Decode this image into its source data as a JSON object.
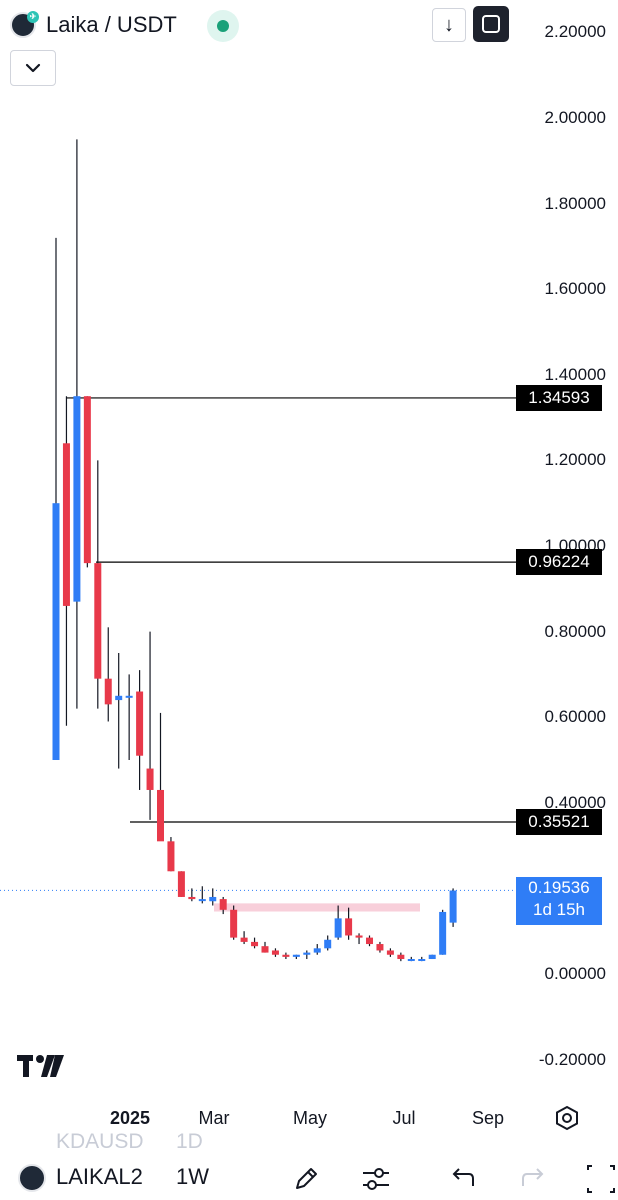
{
  "header": {
    "symbol": "Laika / USDT",
    "status_color": "#1aa179",
    "download_icon": "arrow-down-icon",
    "fullscreen_icon": "fullscreen-icon",
    "collapse_icon": "chevron-down-icon"
  },
  "colors": {
    "up": "#2f7df6",
    "down": "#e8394a",
    "zone": "#f7c7d3",
    "line": "#000000"
  },
  "chart_data": {
    "type": "candlestick",
    "interval": "1W",
    "y_ticks": [
      "2.20000",
      "2.00000",
      "1.80000",
      "1.60000",
      "1.40000",
      "1.20000",
      "1.00000",
      "0.80000",
      "0.60000",
      "0.40000",
      "0.00000",
      "-0.20000"
    ],
    "y_tick_values": [
      2.2,
      2.0,
      1.8,
      1.6,
      1.4,
      1.2,
      1.0,
      0.8,
      0.6,
      0.4,
      0.0,
      -0.2
    ],
    "ylim": [
      -0.2,
      2.2
    ],
    "x_ticks": [
      "2025",
      "Mar",
      "May",
      "Jul",
      "Sep"
    ],
    "horizontal_levels": [
      {
        "value": 1.34593,
        "label": "1.34593"
      },
      {
        "value": 0.96224,
        "label": "0.96224"
      },
      {
        "value": 0.35521,
        "label": "0.35521"
      }
    ],
    "last_price": {
      "value": 0.19536,
      "label": "0.19536",
      "countdown": "1d 15h"
    },
    "resistance_zone": {
      "from": 0.146,
      "to": 0.165
    },
    "candles": [
      {
        "o": 0.5,
        "h": 1.72,
        "l": 0.5,
        "c": 1.1
      },
      {
        "o": 1.24,
        "h": 1.35,
        "l": 0.58,
        "c": 0.86
      },
      {
        "o": 0.87,
        "h": 1.95,
        "l": 0.62,
        "c": 1.35
      },
      {
        "o": 1.35,
        "h": 1.35,
        "l": 0.95,
        "c": 0.96
      },
      {
        "o": 0.96,
        "h": 1.2,
        "l": 0.62,
        "c": 0.69
      },
      {
        "o": 0.69,
        "h": 0.81,
        "l": 0.59,
        "c": 0.63
      },
      {
        "o": 0.64,
        "h": 0.75,
        "l": 0.48,
        "c": 0.65
      },
      {
        "o": 0.65,
        "h": 0.7,
        "l": 0.5,
        "c": 0.65
      },
      {
        "o": 0.66,
        "h": 0.71,
        "l": 0.43,
        "c": 0.51
      },
      {
        "o": 0.48,
        "h": 0.8,
        "l": 0.36,
        "c": 0.43
      },
      {
        "o": 0.43,
        "h": 0.61,
        "l": 0.32,
        "c": 0.31
      },
      {
        "o": 0.31,
        "h": 0.32,
        "l": 0.24,
        "c": 0.24
      },
      {
        "o": 0.24,
        "h": 0.24,
        "l": 0.18,
        "c": 0.18
      },
      {
        "o": 0.18,
        "h": 0.2,
        "l": 0.17,
        "c": 0.175
      },
      {
        "o": 0.175,
        "h": 0.205,
        "l": 0.165,
        "c": 0.175
      },
      {
        "o": 0.17,
        "h": 0.2,
        "l": 0.16,
        "c": 0.18
      },
      {
        "o": 0.175,
        "h": 0.18,
        "l": 0.14,
        "c": 0.15
      },
      {
        "o": 0.15,
        "h": 0.16,
        "l": 0.08,
        "c": 0.085
      },
      {
        "o": 0.085,
        "h": 0.1,
        "l": 0.07,
        "c": 0.075
      },
      {
        "o": 0.075,
        "h": 0.085,
        "l": 0.06,
        "c": 0.065
      },
      {
        "o": 0.065,
        "h": 0.075,
        "l": 0.05,
        "c": 0.05
      },
      {
        "o": 0.055,
        "h": 0.06,
        "l": 0.04,
        "c": 0.045
      },
      {
        "o": 0.045,
        "h": 0.05,
        "l": 0.035,
        "c": 0.04
      },
      {
        "o": 0.04,
        "h": 0.045,
        "l": 0.035,
        "c": 0.045
      },
      {
        "o": 0.045,
        "h": 0.055,
        "l": 0.035,
        "c": 0.05
      },
      {
        "o": 0.05,
        "h": 0.07,
        "l": 0.045,
        "c": 0.06
      },
      {
        "o": 0.06,
        "h": 0.09,
        "l": 0.055,
        "c": 0.08
      },
      {
        "o": 0.085,
        "h": 0.16,
        "l": 0.08,
        "c": 0.13
      },
      {
        "o": 0.13,
        "h": 0.155,
        "l": 0.08,
        "c": 0.09
      },
      {
        "o": 0.09,
        "h": 0.095,
        "l": 0.07,
        "c": 0.085
      },
      {
        "o": 0.085,
        "h": 0.09,
        "l": 0.065,
        "c": 0.07
      },
      {
        "o": 0.07,
        "h": 0.075,
        "l": 0.05,
        "c": 0.055
      },
      {
        "o": 0.055,
        "h": 0.06,
        "l": 0.04,
        "c": 0.045
      },
      {
        "o": 0.045,
        "h": 0.05,
        "l": 0.03,
        "c": 0.035
      },
      {
        "o": 0.035,
        "h": 0.04,
        "l": 0.03,
        "c": 0.035
      },
      {
        "o": 0.035,
        "h": 0.04,
        "l": 0.03,
        "c": 0.035
      },
      {
        "o": 0.035,
        "h": 0.045,
        "l": 0.035,
        "c": 0.045
      },
      {
        "o": 0.045,
        "h": 0.15,
        "l": 0.045,
        "c": 0.145
      },
      {
        "o": 0.12,
        "h": 0.2,
        "l": 0.11,
        "c": 0.195
      }
    ]
  },
  "footer": {
    "tv_logo_icon": "tradingview-logo-icon",
    "settings_icon": "settings-icon",
    "ghost_symbol": "KDAUSD",
    "ghost_interval": "1D",
    "symbol": "LAIKAL2",
    "interval": "1W",
    "tools": [
      "pencil-icon",
      "sliders-icon",
      "undo-icon",
      "redo-icon",
      "crosshair-icon"
    ]
  }
}
